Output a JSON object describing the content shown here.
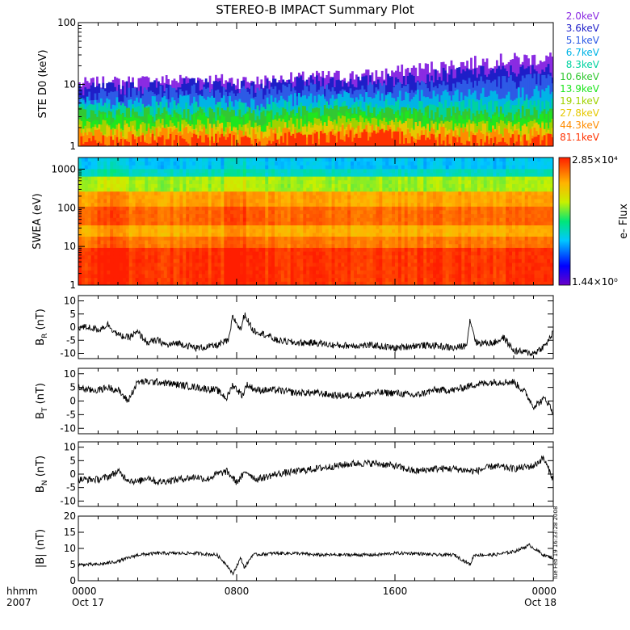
{
  "figure": {
    "title": "STEREO-B IMPACT Summary Plot",
    "stamp": "Tue Feb 19 16:33:28 2008"
  },
  "chart_data": [
    {
      "type": "area",
      "name": "ste",
      "ylabel": "STE D0 (keV)",
      "yscale": "log",
      "ylim": [
        1,
        100
      ],
      "yticks": [
        "1",
        "10",
        "100"
      ],
      "legend_placement": "right",
      "series": [
        {
          "name": "2.0keV",
          "color": "#8a2be2",
          "profile": [
            [
              0,
              10
            ],
            [
              3,
              11
            ],
            [
              6,
              12
            ],
            [
              9,
              11
            ],
            [
              12,
              13
            ],
            [
              15,
              14
            ],
            [
              18,
              19
            ],
            [
              21,
              24
            ],
            [
              24,
              27
            ]
          ]
        },
        {
          "name": "3.6keV",
          "color": "#1e1ec8",
          "profile": [
            [
              0,
              8
            ],
            [
              3,
              9
            ],
            [
              6,
              10
            ],
            [
              9,
              9
            ],
            [
              12,
              11
            ],
            [
              15,
              11
            ],
            [
              18,
              14
            ],
            [
              21,
              16
            ],
            [
              24,
              17
            ]
          ]
        },
        {
          "name": "5.1keV",
          "color": "#2d5ae6",
          "profile": [
            [
              0,
              6.5
            ],
            [
              3,
              7
            ],
            [
              6,
              8
            ],
            [
              9,
              7.5
            ],
            [
              12,
              8.5
            ],
            [
              15,
              8.5
            ],
            [
              18,
              10
            ],
            [
              21,
              11
            ],
            [
              24,
              12
            ]
          ]
        },
        {
          "name": "6.7keV",
          "color": "#00b4e6",
          "profile": [
            [
              0,
              5
            ],
            [
              3,
              5
            ],
            [
              6,
              5.5
            ],
            [
              9,
              5
            ],
            [
              12,
              6
            ],
            [
              15,
              6
            ],
            [
              18,
              6.5
            ],
            [
              21,
              7
            ],
            [
              24,
              7.5
            ]
          ]
        },
        {
          "name": "8.3keV",
          "color": "#00d2a0",
          "profile": [
            [
              0,
              4
            ],
            [
              3,
              4
            ],
            [
              6,
              4.2
            ],
            [
              9,
              4
            ],
            [
              12,
              4.5
            ],
            [
              15,
              4.5
            ],
            [
              18,
              4.6
            ],
            [
              21,
              4.5
            ],
            [
              24,
              4.8
            ]
          ]
        },
        {
          "name": "10.6keV",
          "color": "#32c832",
          "profile": [
            [
              0,
              3.3
            ],
            [
              3,
              3.3
            ],
            [
              6,
              3.4
            ],
            [
              9,
              3.3
            ],
            [
              12,
              3.6
            ],
            [
              15,
              3.6
            ],
            [
              18,
              3.5
            ],
            [
              21,
              3.4
            ],
            [
              24,
              3.6
            ]
          ]
        },
        {
          "name": "13.9keV",
          "color": "#1ee61e",
          "profile": [
            [
              0,
              2.6
            ],
            [
              3,
              2.6
            ],
            [
              6,
              2.7
            ],
            [
              9,
              2.6
            ],
            [
              12,
              2.9
            ],
            [
              15,
              3.0
            ],
            [
              18,
              2.8
            ],
            [
              21,
              2.7
            ],
            [
              24,
              2.8
            ]
          ]
        },
        {
          "name": "19.1keV",
          "color": "#a0d200",
          "profile": [
            [
              0,
              2.1
            ],
            [
              3,
              2.1
            ],
            [
              6,
              2.2
            ],
            [
              9,
              2.1
            ],
            [
              12,
              2.4
            ],
            [
              15,
              2.5
            ],
            [
              18,
              2.2
            ],
            [
              21,
              2.1
            ],
            [
              24,
              2.2
            ]
          ]
        },
        {
          "name": "27.8keV",
          "color": "#e6c800",
          "profile": [
            [
              0,
              1.8
            ],
            [
              3,
              1.8
            ],
            [
              6,
              1.9
            ],
            [
              9,
              1.8
            ],
            [
              12,
              2.0
            ],
            [
              15,
              2.1
            ],
            [
              18,
              1.9
            ],
            [
              21,
              1.8
            ],
            [
              24,
              1.9
            ]
          ]
        },
        {
          "name": "44.3keV",
          "color": "#ff8c00",
          "profile": [
            [
              0,
              1.5
            ],
            [
              3,
              1.5
            ],
            [
              6,
              1.6
            ],
            [
              9,
              1.5
            ],
            [
              12,
              1.7
            ],
            [
              15,
              1.8
            ],
            [
              18,
              1.6
            ],
            [
              21,
              1.5
            ],
            [
              24,
              1.6
            ]
          ]
        },
        {
          "name": "81.1keV",
          "color": "#ff3200",
          "profile": [
            [
              0,
              1.2
            ],
            [
              3,
              1.2
            ],
            [
              6,
              1.3
            ],
            [
              9,
              1.2
            ],
            [
              12,
              1.4
            ],
            [
              15,
              1.5
            ],
            [
              18,
              1.3
            ],
            [
              21,
              1.2
            ],
            [
              24,
              1.3
            ]
          ]
        }
      ]
    },
    {
      "type": "heatmap",
      "name": "swea",
      "ylabel": "SWEA (eV)",
      "yscale": "log",
      "ylim": [
        1,
        2000
      ],
      "yticks": [
        "1",
        "10",
        "100",
        "1000"
      ],
      "colorbar": {
        "label": "e- Flux",
        "max_label": "2.85×10⁴",
        "min_label": "1.44×10⁰"
      }
    },
    {
      "type": "line",
      "name": "br",
      "ylabel_main": "B",
      "ylabel_sub": "R",
      "ylabel_unit": "(nT)",
      "ylim": [
        -12,
        12
      ],
      "yticks": [
        -10,
        -5,
        0,
        5,
        10
      ],
      "profile": [
        [
          0,
          0
        ],
        [
          0.5,
          0
        ],
        [
          1,
          -1
        ],
        [
          1.5,
          1
        ],
        [
          2,
          -3
        ],
        [
          2.5,
          -4
        ],
        [
          3,
          -2
        ],
        [
          3.5,
          -6
        ],
        [
          4,
          -5
        ],
        [
          4.5,
          -7
        ],
        [
          5,
          -6
        ],
        [
          6,
          -8
        ],
        [
          7,
          -7
        ],
        [
          7.6,
          -5
        ],
        [
          7.8,
          4
        ],
        [
          8.2,
          -1
        ],
        [
          8.4,
          5
        ],
        [
          8.8,
          -1
        ],
        [
          9.5,
          -3
        ],
        [
          10,
          -5
        ],
        [
          11,
          -6
        ],
        [
          12,
          -6
        ],
        [
          13,
          -7
        ],
        [
          14,
          -7
        ],
        [
          15,
          -7
        ],
        [
          16,
          -8
        ],
        [
          17,
          -7
        ],
        [
          18,
          -7
        ],
        [
          19,
          -8
        ],
        [
          19.6,
          -7
        ],
        [
          19.8,
          3
        ],
        [
          20.1,
          -6
        ],
        [
          21,
          -6
        ],
        [
          21.5,
          -4
        ],
        [
          22,
          -9
        ],
        [
          23,
          -10
        ],
        [
          23.6,
          -7
        ],
        [
          24,
          -2
        ]
      ]
    },
    {
      "type": "line",
      "name": "bt",
      "ylabel_main": "B",
      "ylabel_sub": "T",
      "ylabel_unit": "(nT)",
      "ylim": [
        -12,
        12
      ],
      "yticks": [
        -10,
        -5,
        0,
        5,
        10
      ],
      "profile": [
        [
          0,
          5
        ],
        [
          0.5,
          4
        ],
        [
          1,
          4
        ],
        [
          1.5,
          5
        ],
        [
          2,
          4
        ],
        [
          2.5,
          0
        ],
        [
          3,
          7
        ],
        [
          3.5,
          7
        ],
        [
          4,
          7
        ],
        [
          5,
          6
        ],
        [
          6,
          5
        ],
        [
          7,
          4
        ],
        [
          7.5,
          1
        ],
        [
          7.8,
          6
        ],
        [
          8.3,
          2
        ],
        [
          8.5,
          6
        ],
        [
          9,
          4
        ],
        [
          10,
          4
        ],
        [
          11,
          3
        ],
        [
          12,
          3
        ],
        [
          13,
          2
        ],
        [
          14,
          2
        ],
        [
          15,
          3
        ],
        [
          16,
          3
        ],
        [
          17,
          2
        ],
        [
          18,
          4
        ],
        [
          19,
          4
        ],
        [
          20,
          6
        ],
        [
          21,
          7
        ],
        [
          22,
          7
        ],
        [
          22.6,
          3
        ],
        [
          23,
          -2
        ],
        [
          23.6,
          1
        ],
        [
          24,
          -4
        ]
      ]
    },
    {
      "type": "line",
      "name": "bn",
      "ylabel_main": "B",
      "ylabel_sub": "N",
      "ylabel_unit": "(nT)",
      "ylim": [
        -12,
        12
      ],
      "yticks": [
        -10,
        -5,
        0,
        5,
        10
      ],
      "profile": [
        [
          0,
          -2
        ],
        [
          1,
          -2
        ],
        [
          1.5,
          -1
        ],
        [
          2,
          1
        ],
        [
          2.5,
          -2
        ],
        [
          3,
          -3
        ],
        [
          3.5,
          -1
        ],
        [
          4,
          -3
        ],
        [
          5,
          -2
        ],
        [
          6,
          -1
        ],
        [
          6.5,
          -2
        ],
        [
          7,
          0
        ],
        [
          7.5,
          1
        ],
        [
          8,
          -3
        ],
        [
          8.5,
          1
        ],
        [
          9,
          -2
        ],
        [
          10,
          0
        ],
        [
          11,
          1
        ],
        [
          12,
          2
        ],
        [
          13,
          3
        ],
        [
          14,
          4
        ],
        [
          15,
          4
        ],
        [
          16,
          3
        ],
        [
          17,
          1
        ],
        [
          18,
          2
        ],
        [
          19,
          2
        ],
        [
          20,
          1
        ],
        [
          21,
          3
        ],
        [
          22,
          2
        ],
        [
          23,
          3
        ],
        [
          23.5,
          6
        ],
        [
          24,
          -2
        ]
      ]
    },
    {
      "type": "line",
      "name": "bmag",
      "ylabel_main": "|B|",
      "ylabel_unit": "(nT)",
      "ylim": [
        0,
        20
      ],
      "yticks": [
        0,
        5,
        10,
        15,
        20
      ],
      "profile": [
        [
          0,
          5
        ],
        [
          1,
          5
        ],
        [
          2,
          6
        ],
        [
          2.5,
          7
        ],
        [
          3,
          8
        ],
        [
          4,
          8.5
        ],
        [
          5,
          8.5
        ],
        [
          6,
          8.5
        ],
        [
          7,
          8
        ],
        [
          7.5,
          5
        ],
        [
          7.8,
          2
        ],
        [
          8.2,
          7
        ],
        [
          8.4,
          4
        ],
        [
          8.8,
          8
        ],
        [
          10,
          8.5
        ],
        [
          11,
          8.5
        ],
        [
          12,
          8
        ],
        [
          13,
          8
        ],
        [
          14,
          8
        ],
        [
          15,
          8
        ],
        [
          16,
          8.5
        ],
        [
          17,
          8.5
        ],
        [
          18,
          8
        ],
        [
          19,
          8
        ],
        [
          19.8,
          5
        ],
        [
          20,
          8
        ],
        [
          21,
          8
        ],
        [
          22,
          9
        ],
        [
          22.8,
          11
        ],
        [
          23.5,
          8
        ],
        [
          24,
          7
        ]
      ]
    }
  ],
  "xaxis": {
    "range_hours": [
      0,
      24
    ],
    "corner_line1": "hhmm",
    "corner_line2": "2007",
    "ticks": [
      {
        "hour": 0,
        "label": "0000",
        "sublabel": "Oct 17"
      },
      {
        "hour": 8,
        "label": "0800",
        "sublabel": ""
      },
      {
        "hour": 16,
        "label": "1600",
        "sublabel": ""
      },
      {
        "hour": 24,
        "label": "0000",
        "sublabel": "Oct 18"
      }
    ]
  }
}
